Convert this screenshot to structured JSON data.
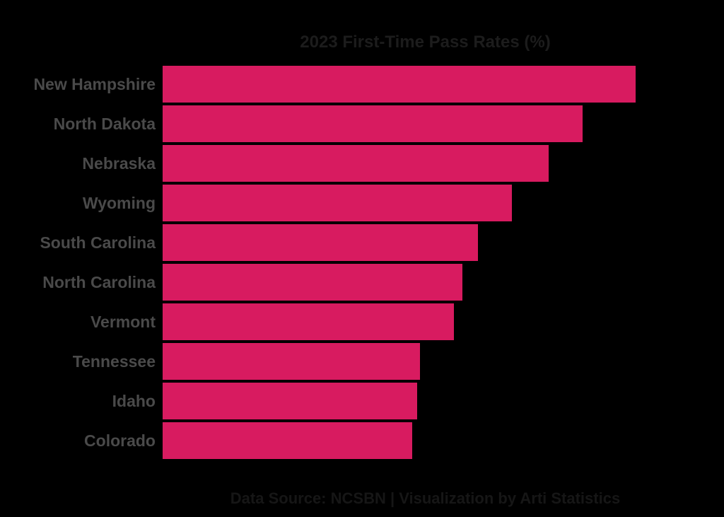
{
  "chart_data": {
    "type": "bar",
    "orientation": "horizontal",
    "title": "2023 First-Time Pass Rates (%)",
    "categories": [
      "New Hampshire",
      "North Dakota",
      "Nebraska",
      "Wyoming",
      "South Carolina",
      "North Carolina",
      "Vermont",
      "Tennessee",
      "Idaho",
      "Colorado"
    ],
    "values": [
      98.0,
      96.0,
      94.7,
      93.3,
      92.0,
      91.4,
      91.1,
      89.8,
      89.7,
      89.5
    ],
    "xlabel": "",
    "ylabel": "",
    "xlim": [
      80,
      100
    ],
    "grid": false,
    "axis_ticks_shown": false,
    "value_labels_shown": false,
    "legend": null,
    "footer": "Data Source: NCSBN | Visualization by Arti Statistics",
    "colors": {
      "bar": "#D81B60",
      "background": "#000000",
      "title_text": "#1C1C1C",
      "category_label_text": "#4A4A4A",
      "footer_text": "#161616"
    }
  }
}
